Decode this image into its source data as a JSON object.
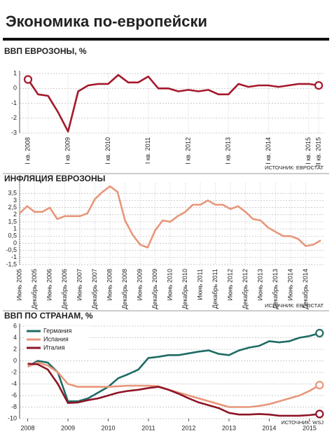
{
  "title": "Экономика по-европейски",
  "chart_data": [
    {
      "type": "line",
      "title": "ВВП ЕВРОЗОНЫ, %",
      "source": "ИСТОЧНИК: ЕВРОСТАТ",
      "color": "#a5192b",
      "categories": [
        "I кв. 2008",
        null,
        null,
        null,
        "I кв. 2009",
        null,
        null,
        null,
        "I кв. 2010",
        null,
        null,
        null,
        "I кв. 2011",
        null,
        null,
        null,
        "I кв. 2012",
        null,
        null,
        null,
        "I кв. 2013",
        null,
        null,
        null,
        "I кв. 2014",
        null,
        null,
        null,
        "I кв. 2015",
        "II кв. 2015"
      ],
      "values": [
        0.6,
        -0.4,
        -0.5,
        -1.6,
        -2.9,
        -0.2,
        0.2,
        0.3,
        0.3,
        0.9,
        0.4,
        0.4,
        0.8,
        0.0,
        0.0,
        -0.2,
        -0.1,
        -0.2,
        -0.1,
        -0.4,
        -0.4,
        0.3,
        0.1,
        0.2,
        0.2,
        0.1,
        0.2,
        0.3,
        0.3,
        0.2
      ],
      "ylim": [
        -3,
        1
      ],
      "yticks": [
        1,
        0,
        -1,
        -2,
        -3
      ],
      "grid": true
    },
    {
      "type": "line",
      "title": "ИНФЛЯЦИЯ ЕВРОЗОНЫ",
      "source": "ИСТОЧНИК: ЕВРОСТАТ",
      "color": "#e8967a",
      "categories": [
        "Июнь 2005",
        null,
        "Декабрь 2005",
        null,
        "Июнь 2006",
        null,
        "Декабрь 2006",
        null,
        "Июнь 2007",
        null,
        "Декабрь 2007",
        null,
        "Июнь 2008",
        null,
        "Декабрь 2008",
        null,
        "Июнь 2009",
        null,
        "Декабрь 2009",
        null,
        "Июнь 2010",
        null,
        "Декабрь 2010",
        null,
        "Июнь 2011",
        null,
        "Декабрь 2011",
        null,
        "Июнь 2012",
        null,
        "Декабрь 2012",
        null,
        "Июнь 2013",
        null,
        "Декабрь 2013",
        null,
        "Июнь 2014",
        null,
        "Декабрь 2014",
        null,
        null
      ],
      "values": [
        2.1,
        2.6,
        2.2,
        2.2,
        2.5,
        1.7,
        1.9,
        1.9,
        1.9,
        2.1,
        3.1,
        3.6,
        4.0,
        3.6,
        1.6,
        0.6,
        -0.1,
        -0.3,
        0.9,
        1.6,
        1.5,
        1.9,
        2.2,
        2.7,
        2.7,
        3.0,
        2.7,
        2.7,
        2.4,
        2.6,
        2.2,
        1.7,
        1.6,
        1.1,
        0.8,
        0.5,
        0.5,
        0.3,
        -0.2,
        -0.1,
        0.2
      ],
      "ylim": [
        -1.5,
        4.2
      ],
      "yticks": [
        {
          "value": 3.5,
          "label": "3,5"
        },
        3,
        {
          "value": 2.5,
          "label": "2,5"
        },
        2,
        {
          "value": 1.5,
          "label": "1,5"
        },
        1,
        {
          "value": 0.5,
          "label": "0,5"
        },
        0,
        {
          "value": -0.5,
          "label": "-0,5"
        },
        -1,
        {
          "value": -1.5,
          "label": "-1,5"
        }
      ],
      "grid": true
    },
    {
      "type": "line",
      "title": "ВВП ПО СТРАНАМ, %",
      "source": "ИСТОЧНИК: WSJ",
      "x": [
        2008,
        2008.25,
        2008.5,
        2008.75,
        2009,
        2009.25,
        2009.5,
        2009.75,
        2010,
        2010.25,
        2010.5,
        2010.75,
        2011,
        2011.25,
        2011.5,
        2011.75,
        2012,
        2012.25,
        2012.5,
        2012.75,
        2013,
        2013.25,
        2013.5,
        2013.75,
        2014,
        2014.25,
        2014.5,
        2014.75,
        2015,
        2015.25
      ],
      "series": [
        {
          "name": "Германия",
          "color": "#1f6b63",
          "values": [
            -1,
            0,
            -0.3,
            -2,
            -7,
            -7,
            -6.5,
            -5.5,
            -4.5,
            -3,
            -2.3,
            -1.5,
            0.5,
            0.7,
            1,
            1,
            1.3,
            1.6,
            1.8,
            1.2,
            1,
            1.8,
            2.3,
            2.6,
            3.4,
            3.2,
            3.4,
            4,
            4.3,
            4.8
          ]
        },
        {
          "name": "Испания",
          "color": "#e8967a",
          "values": [
            -1,
            -0.3,
            -0.8,
            -2,
            -4,
            -4.5,
            -4.5,
            -4.5,
            -4.5,
            -4.4,
            -4.3,
            -4.3,
            -4.3,
            -4.4,
            -5,
            -5.5,
            -6,
            -6.5,
            -7,
            -7.5,
            -8,
            -8,
            -8,
            -7.8,
            -7.5,
            -7,
            -6.5,
            -6,
            -5.2,
            -4.2
          ]
        },
        {
          "name": "Италия",
          "color": "#8e1526",
          "values": [
            -0.5,
            -0.6,
            -1.5,
            -4,
            -7.3,
            -7.2,
            -6.8,
            -6.5,
            -6,
            -5.5,
            -5.2,
            -5,
            -4.7,
            -4.5,
            -5,
            -5.7,
            -6.5,
            -7.2,
            -7.7,
            -8.2,
            -9,
            -9.3,
            -9.3,
            -9.2,
            -9.3,
            -9.5,
            -9.5,
            -9.5,
            -9.4,
            -9.2
          ]
        }
      ],
      "xlim": [
        2007.8,
        2015.35
      ],
      "xticks": [
        2008,
        2009,
        2010,
        2011,
        2012,
        2013,
        2014,
        2015
      ],
      "ylim": [
        -10,
        6
      ],
      "yticks": [
        6,
        4,
        2,
        0,
        -2,
        -4,
        -6,
        -8,
        -10
      ],
      "grid": true
    }
  ]
}
